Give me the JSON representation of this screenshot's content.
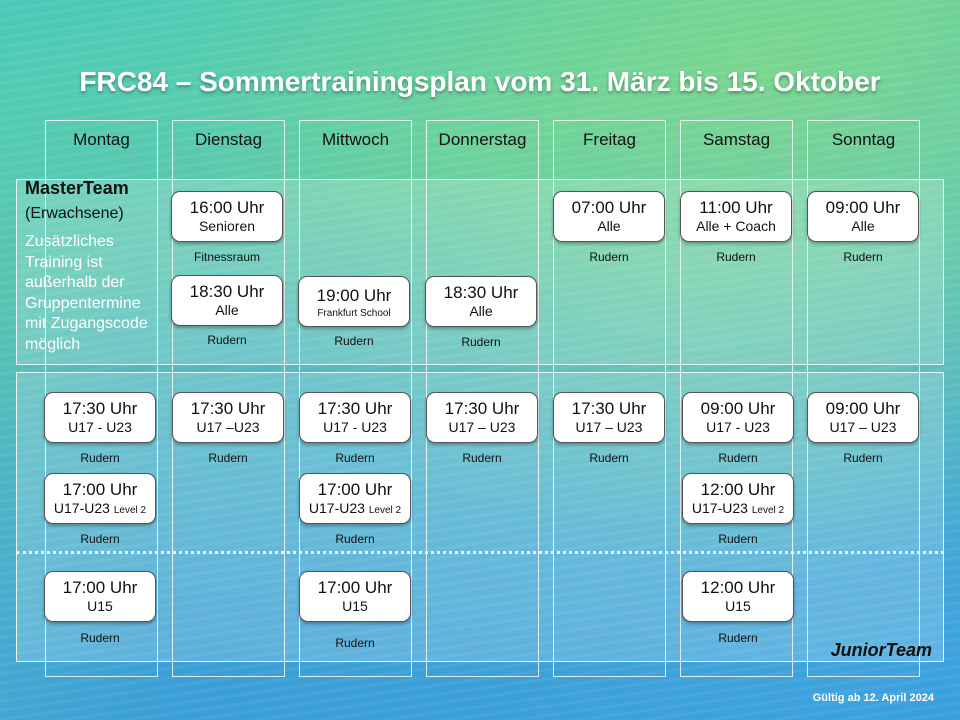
{
  "title": "FRC84 – Sommertrainingsplan  vom 31. März bis 15. Oktober",
  "days": [
    "Montag",
    "Dienstag",
    "Mittwoch",
    "Donnerstag",
    "Freitag",
    "Samstag",
    "Sonntag"
  ],
  "master": {
    "name": "MasterTeam",
    "subtitle": "(Erwachsene)",
    "note": "Zusätzliches Training  ist außerhalb der Gruppentermine mit Zugangscode möglich",
    "sessions": [
      {
        "time": "16:00 Uhr",
        "group": "Senioren",
        "location": "Fitnessraum"
      },
      {
        "time": "18:30 Uhr",
        "group": "Alle",
        "location": "Rudern"
      },
      {
        "time": "19:00 Uhr",
        "group": "Frankfurt School",
        "location": "Rudern"
      },
      {
        "time": "18:30 Uhr",
        "group": "Alle",
        "location": "Rudern"
      },
      {
        "time": "07:00 Uhr",
        "group": "Alle",
        "location": "Rudern"
      },
      {
        "time": "11:00 Uhr",
        "group": "Alle + Coach",
        "location": "Rudern"
      },
      {
        "time": "09:00 Uhr",
        "group": "Alle",
        "location": "Rudern"
      }
    ]
  },
  "junior": {
    "name": "JuniorTeam",
    "sessions": [
      {
        "time": "17:30 Uhr",
        "group": "U17 - U23",
        "location": "Rudern"
      },
      {
        "time": "17:00 Uhr",
        "group": "U17-U23",
        "level": "Level 2",
        "location": "Rudern"
      },
      {
        "time": "17:00 Uhr",
        "group": "U15",
        "location": "Rudern"
      },
      {
        "time": "17:30 Uhr",
        "group": "U17 –U23",
        "location": "Rudern"
      },
      {
        "time": "17:30 Uhr",
        "group": "U17 -  U23",
        "location": "Rudern"
      },
      {
        "time": "17:00 Uhr",
        "group": "U17-U23",
        "level": "Level 2",
        "location": "Rudern"
      },
      {
        "time": "17:00 Uhr",
        "group": "U15",
        "location": "Rudern"
      },
      {
        "time": "17:30 Uhr",
        "group": "U17 – U23",
        "location": "Rudern"
      },
      {
        "time": "17:30 Uhr",
        "group": "U17 – U23",
        "location": "Rudern"
      },
      {
        "time": "09:00 Uhr",
        "group": "U17 - U23",
        "location": "Rudern"
      },
      {
        "time": "12:00 Uhr",
        "group": "U17-U23",
        "level": "Level 2",
        "location": "Rudern"
      },
      {
        "time": "12:00 Uhr",
        "group": "U15",
        "location": "Rudern"
      },
      {
        "time": "09:00 Uhr",
        "group": "U17 – U23",
        "location": "Rudern"
      }
    ]
  },
  "valid_from": "Gültig ab 12. April 2024"
}
